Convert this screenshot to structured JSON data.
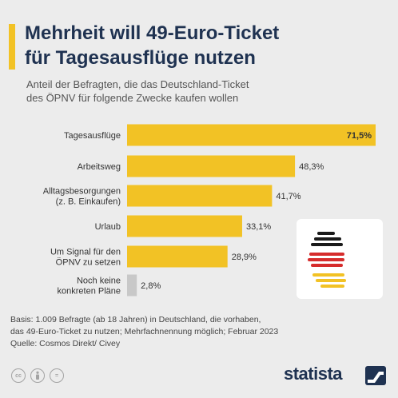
{
  "header": {
    "title_line1": "Mehrheit will 49-Euro-Ticket",
    "title_line2": "für Tagesausflüge nutzen",
    "subtitle_line1": "Anteil der Befragten, die das Deutschland-Ticket",
    "subtitle_line2": "des ÖPNV für folgende Zwecke kaufen wollen"
  },
  "colors": {
    "accent": "#f2c225",
    "bar": "#f2c225",
    "bar_muted": "#c8c8c8",
    "title": "#1f3251",
    "flag_black": "#1a1a1a",
    "flag_red": "#d62c2c",
    "flag_gold": "#f2c225"
  },
  "chart_data": {
    "type": "bar",
    "orientation": "horizontal",
    "categories": [
      [
        "Tagesausflüge"
      ],
      [
        "Arbeitsweg"
      ],
      [
        "Alltagsbesorgungen",
        "(z. B. Einkaufen)"
      ],
      [
        "Urlaub"
      ],
      [
        "Um Signal für den",
        "ÖPNV zu setzen"
      ],
      [
        "Noch keine",
        "konkreten Pläne"
      ]
    ],
    "values": [
      71.5,
      48.3,
      41.7,
      33.1,
      28.9,
      2.8
    ],
    "value_labels": [
      "71,5%",
      "48,3%",
      "41,7%",
      "33,1%",
      "28,9%",
      "2,8%"
    ],
    "xlim": [
      0,
      71.5
    ],
    "grid": false,
    "unit": "%"
  },
  "footnote": {
    "line1": "Basis: 1.009 Befragte (ab 18 Jahren) in Deutschland, die vorhaben,",
    "line2": "das 49-Euro-Ticket zu nutzen; Mehrfachnennung möglich; Februar 2023",
    "line3": "Quelle: Cosmos Direkt/ Civey"
  },
  "license_icons": [
    "cc",
    "by",
    "="
  ],
  "brand": {
    "name": "statista"
  }
}
